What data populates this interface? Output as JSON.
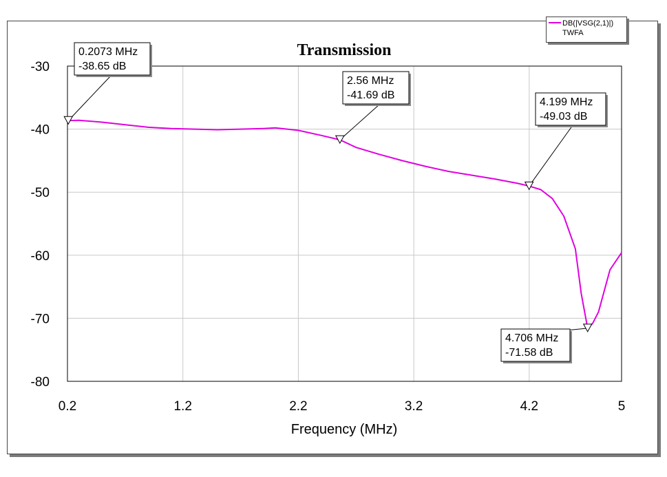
{
  "chart_data": {
    "type": "line",
    "title": "Transmission",
    "xlabel": "Frequency (MHz)",
    "ylabel": "",
    "xlim": [
      0.2,
      5
    ],
    "ylim": [
      -80,
      -30
    ],
    "x_ticks": [
      0.2,
      1.2,
      2.2,
      3.2,
      4.2,
      5
    ],
    "x_tick_labels": [
      "0.2",
      "1.2",
      "2.2",
      "3.2",
      "4.2",
      "5"
    ],
    "y_ticks": [
      -30,
      -40,
      -50,
      -60,
      -70,
      -80
    ],
    "y_tick_labels": [
      "-30",
      "-40",
      "-50",
      "-60",
      "-70",
      "-80"
    ],
    "grid": true,
    "legend": {
      "placement": "top-right",
      "entries": [
        "DB(|VSG(2,1)|)"
      ],
      "subtitle": "TWFA"
    },
    "series": [
      {
        "name": "DB(|VSG(2,1)|)",
        "color": "#e000e0",
        "x": [
          0.2,
          0.3,
          0.5,
          0.7,
          0.9,
          1.1,
          1.3,
          1.5,
          1.7,
          1.9,
          2.0,
          2.2,
          2.4,
          2.56,
          2.7,
          2.9,
          3.1,
          3.3,
          3.5,
          3.7,
          3.9,
          4.1,
          4.199,
          4.3,
          4.4,
          4.5,
          4.6,
          4.65,
          4.706,
          4.75,
          4.8,
          4.9,
          5.0
        ],
        "y": [
          -38.65,
          -38.6,
          -38.9,
          -39.3,
          -39.7,
          -39.9,
          -40.0,
          -40.1,
          -40.0,
          -39.9,
          -39.8,
          -40.2,
          -41.0,
          -41.69,
          -42.9,
          -44.0,
          -45.0,
          -45.9,
          -46.7,
          -47.3,
          -47.9,
          -48.6,
          -49.03,
          -49.6,
          -51.0,
          -53.8,
          -59.0,
          -66.0,
          -71.58,
          -70.8,
          -69.0,
          -62.3,
          -59.6
        ]
      }
    ],
    "markers": [
      {
        "freq": 0.2073,
        "value": -38.65,
        "line1": "0.2073 MHz",
        "line2": "-38.65 dB"
      },
      {
        "freq": 2.56,
        "value": -41.69,
        "line1": "2.56 MHz",
        "line2": "-41.69 dB"
      },
      {
        "freq": 4.199,
        "value": -49.03,
        "line1": "4.199 MHz",
        "line2": "-49.03 dB"
      },
      {
        "freq": 4.706,
        "value": -71.58,
        "line1": "4.706 MHz",
        "line2": "-71.58 dB"
      }
    ]
  }
}
